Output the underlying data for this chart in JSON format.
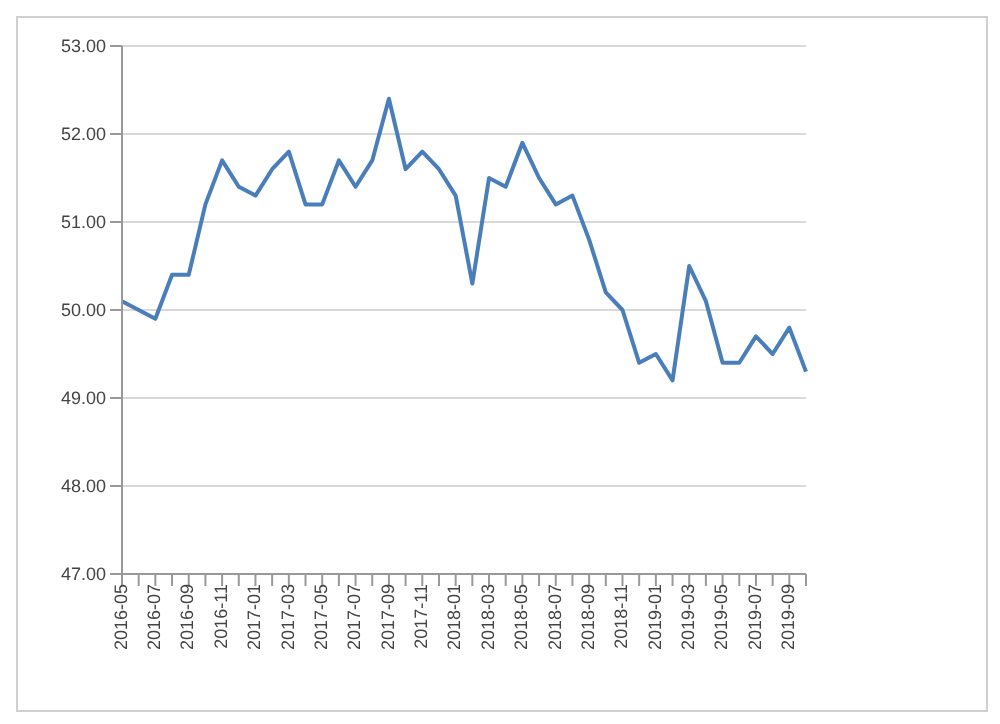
{
  "chart_data": {
    "type": "line",
    "categories": [
      "2016-05",
      null,
      "2016-07",
      null,
      "2016-09",
      null,
      "2016-11",
      null,
      "2017-01",
      null,
      "2017-03",
      null,
      "2017-05",
      null,
      "2017-07",
      null,
      "2017-09",
      null,
      "2017-11",
      null,
      "2018-01",
      null,
      "2018-03",
      null,
      "2018-05",
      null,
      "2018-07",
      null,
      "2018-09",
      null,
      "2018-11",
      null,
      "2019-01",
      null,
      "2019-03",
      null,
      "2019-05",
      null,
      "2019-07",
      null,
      "2019-09",
      null
    ],
    "series": [
      {
        "color": "#4a7ebb",
        "values": [
          50.1,
          50.0,
          49.9,
          50.4,
          50.4,
          51.2,
          51.7,
          51.4,
          51.3,
          51.6,
          51.8,
          51.2,
          51.2,
          51.7,
          51.4,
          51.7,
          52.4,
          51.6,
          51.8,
          51.6,
          51.3,
          50.3,
          51.5,
          51.4,
          51.9,
          51.5,
          51.2,
          51.3,
          50.8,
          50.2,
          50.0,
          49.4,
          49.5,
          49.2,
          50.5,
          50.1,
          49.4,
          49.4,
          49.7,
          49.5,
          49.8,
          49.3
        ]
      }
    ],
    "ylim": [
      47,
      53
    ],
    "yticks": [
      {
        "value": 47,
        "label": "47.00"
      },
      {
        "value": 48,
        "label": "48.00"
      },
      {
        "value": 49,
        "label": "49.00"
      },
      {
        "value": 50,
        "label": "50.00"
      },
      {
        "value": 51,
        "label": "51.00"
      },
      {
        "value": 52,
        "label": "52.00"
      },
      {
        "value": 53,
        "label": "53.00"
      }
    ],
    "grid": "y",
    "marker": "none",
    "line_style": "solid",
    "legend": false
  }
}
